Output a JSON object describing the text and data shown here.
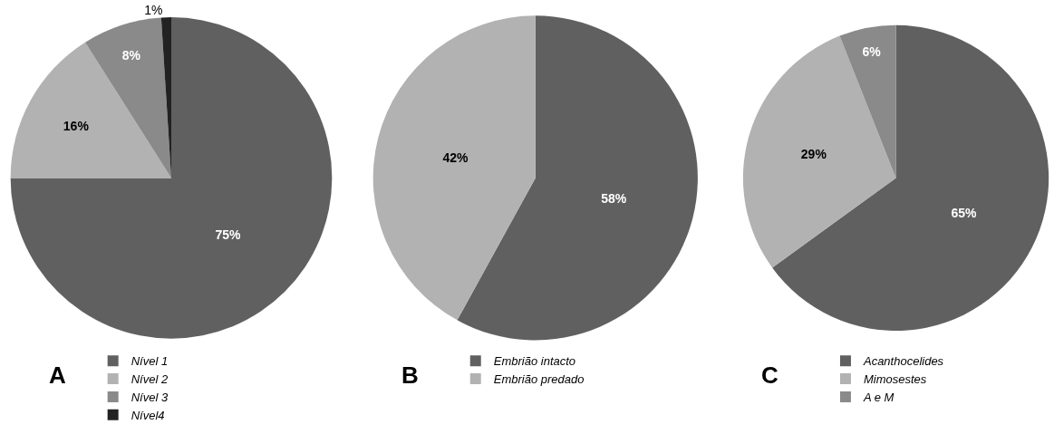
{
  "chart_data": [
    {
      "type": "pie",
      "title": "A",
      "categories": [
        "Nível 1",
        "Nível 2",
        "Nível 3",
        "Nível4"
      ],
      "values": [
        75,
        16,
        8,
        1
      ],
      "value_labels": [
        "75%",
        "16%",
        "8%",
        "1%"
      ],
      "colors": [
        "#606060",
        "#b2b2b2",
        "#8a8a8a",
        "#222222"
      ],
      "legend": "bottom"
    },
    {
      "type": "pie",
      "title": "B",
      "categories": [
        "Embrião intacto",
        "Embrião predado"
      ],
      "values": [
        58,
        42
      ],
      "value_labels": [
        "58%",
        "42%"
      ],
      "colors": [
        "#606060",
        "#b2b2b2"
      ],
      "legend": "bottom"
    },
    {
      "type": "pie",
      "title": "C",
      "categories": [
        "Acanthocelides",
        "Mimosestes",
        "A e M"
      ],
      "values": [
        65,
        29,
        6
      ],
      "value_labels": [
        "65%",
        "29%",
        "6%"
      ],
      "colors": [
        "#606060",
        "#b2b2b2",
        "#8a8a8a"
      ],
      "legend": "bottom"
    }
  ]
}
